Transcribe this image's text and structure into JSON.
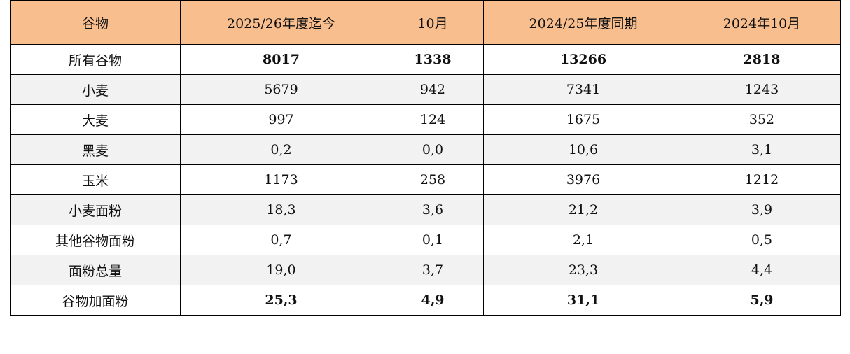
{
  "table": {
    "header": [
      "谷物",
      "2025/26年度迄今",
      "10月",
      "2024/25年度同期",
      "2024年10月"
    ],
    "rows": [
      [
        "所有谷物",
        "8017",
        "1338",
        "13266",
        "2818"
      ],
      [
        "小麦",
        "5679",
        "942",
        "7341",
        "1243"
      ],
      [
        "大麦",
        "997",
        "124",
        "1675",
        "352"
      ],
      [
        "黑麦",
        "0,2",
        "0,0",
        "10,6",
        "3,1"
      ],
      [
        "玉米",
        "1173",
        "258",
        "3976",
        "1212"
      ],
      [
        "小麦面粉",
        "18,3",
        "3,6",
        "21,2",
        "3,9"
      ],
      [
        "其他谷物面粉",
        "0,7",
        "0,1",
        "2,1",
        "0,5"
      ],
      [
        "面粉总量",
        "19,0",
        "3,7",
        "23,3",
        "4,4"
      ],
      [
        "谷物加面粉",
        "25,3",
        "4,9",
        "31,1",
        "5,9"
      ]
    ]
  }
}
